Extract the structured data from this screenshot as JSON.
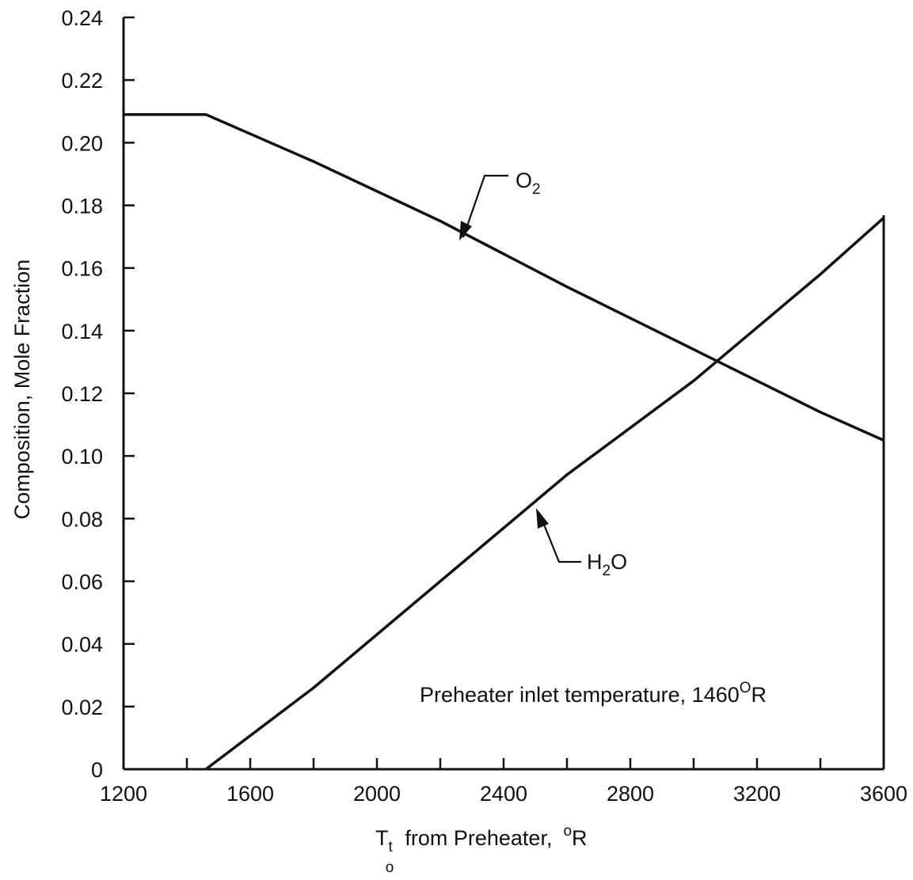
{
  "chart_data": {
    "type": "line",
    "title": "",
    "xlabel": {
      "main": "T",
      "sub1": "t",
      "sub2": "o",
      "text": "from Preheater,",
      "unit_sup": "o",
      "unit": "R"
    },
    "ylabel": "Composition, Mole Fraction",
    "xlim": [
      1200,
      3600
    ],
    "ylim": [
      0,
      0.24
    ],
    "xticks": [
      1200,
      1600,
      2000,
      2400,
      2800,
      3200,
      3600
    ],
    "xtick_labels": [
      "1200",
      "1600",
      "2000",
      "2400",
      "2800",
      "3200",
      "3600"
    ],
    "xminor": [
      1400,
      1800,
      2200,
      2600,
      3000,
      3400
    ],
    "yticks": [
      0,
      0.02,
      0.04,
      0.06,
      0.08,
      0.1,
      0.12,
      0.14,
      0.16,
      0.18,
      0.2,
      0.22,
      0.24
    ],
    "ytick_labels": [
      "0",
      "0.02",
      "0.04",
      "0.06",
      "0.08",
      "0.10",
      "0.12",
      "0.14",
      "0.16",
      "0.18",
      "0.20",
      "0.22",
      "0.24"
    ],
    "grid": false,
    "series": [
      {
        "key": "o2",
        "label_main": "O",
        "label_sub": "2",
        "x": [
          1200,
          1460,
          1800,
          2200,
          2600,
          3000,
          3400,
          3600
        ],
        "y": [
          0.209,
          0.209,
          0.194,
          0.175,
          0.154,
          0.134,
          0.114,
          0.105
        ]
      },
      {
        "key": "h2o",
        "label_main": "H",
        "label_sub": "2",
        "label_tail": "O",
        "x": [
          1460,
          1800,
          2200,
          2600,
          3000,
          3400,
          3600
        ],
        "y": [
          0,
          0.026,
          0.06,
          0.094,
          0.124,
          0.158,
          0.176
        ]
      }
    ],
    "annotation": {
      "text": "Preheater inlet temperature, 1460",
      "sup": "O",
      "unit": "R"
    }
  }
}
